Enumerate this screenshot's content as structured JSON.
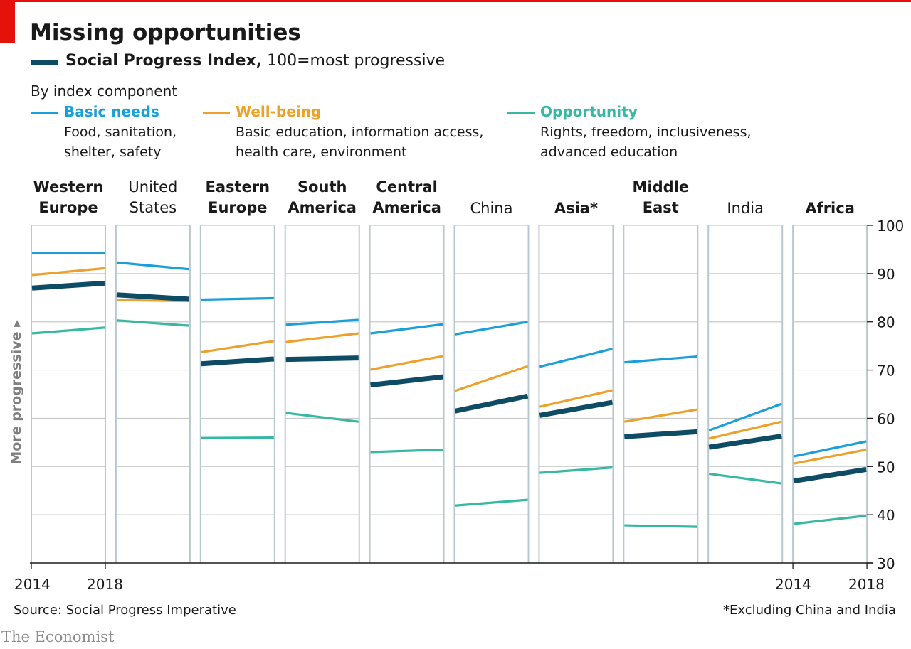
{
  "header": {
    "title": "Missing opportunities",
    "subtitle_bold": "Social Progress Index,",
    "subtitle_rest": " 100=most progressive",
    "components_title": "By index component"
  },
  "legend": [
    {
      "name": "Basic needs",
      "color": "#1a9fd8",
      "desc1": "Food, sanitation,",
      "desc2": "shelter, safety"
    },
    {
      "name": "Well-being",
      "color": "#eea12a",
      "desc1": "Basic education, information access,",
      "desc2": "health care, environment"
    },
    {
      "name": "Opportunity",
      "color": "#36b8a2",
      "desc1": "Rights, freedom, inclusiveness,",
      "desc2": "advanced education"
    }
  ],
  "ylabel": "More progressive ▸",
  "source": "Source:  Social Progress Imperative",
  "footnote": "*Excluding China and India",
  "brand": "The Economist",
  "chart_data": {
    "type": "line",
    "title": "Missing opportunities",
    "x": [
      2014,
      2018
    ],
    "x_tick_labels": [
      "2014",
      "2018"
    ],
    "ylim": [
      30,
      100
    ],
    "y_ticks": [
      30,
      40,
      50,
      60,
      70,
      80,
      90,
      100
    ],
    "y_axis_side": "right",
    "colors": {
      "Social Progress Index": "#0e4c65",
      "Basic needs": "#1a9fd8",
      "Well-being": "#eea12a",
      "Opportunity": "#36b8a2"
    },
    "panels": [
      {
        "label": "Western Europe",
        "bold": true,
        "label_lines": [
          "Western",
          "Europe"
        ],
        "series": {
          "Social Progress Index": [
            87.0,
            88.0
          ],
          "Basic needs": [
            94.2,
            94.3
          ],
          "Well-being": [
            89.7,
            91.1
          ],
          "Opportunity": [
            77.6,
            78.8
          ]
        }
      },
      {
        "label": "United States",
        "bold": false,
        "label_lines": [
          "United",
          "States"
        ],
        "series": {
          "Social Progress Index": [
            85.6,
            84.7
          ],
          "Basic needs": [
            92.3,
            90.9
          ],
          "Well-being": [
            84.5,
            84.3
          ],
          "Opportunity": [
            80.3,
            79.2
          ]
        }
      },
      {
        "label": "Eastern Europe",
        "bold": true,
        "label_lines": [
          "Eastern",
          "Europe"
        ],
        "series": {
          "Social Progress Index": [
            71.3,
            72.3
          ],
          "Basic needs": [
            84.6,
            84.9
          ],
          "Well-being": [
            73.7,
            76.0
          ],
          "Opportunity": [
            55.9,
            56.0
          ]
        }
      },
      {
        "label": "South America",
        "bold": true,
        "label_lines": [
          "South",
          "America"
        ],
        "series": {
          "Social Progress Index": [
            72.2,
            72.5
          ],
          "Basic needs": [
            79.4,
            80.4
          ],
          "Well-being": [
            75.8,
            77.6
          ],
          "Opportunity": [
            61.1,
            59.3
          ]
        }
      },
      {
        "label": "Central America",
        "bold": true,
        "label_lines": [
          "Central",
          "America"
        ],
        "series": {
          "Social Progress Index": [
            66.9,
            68.6
          ],
          "Basic needs": [
            77.6,
            79.5
          ],
          "Well-being": [
            70.1,
            72.9
          ],
          "Opportunity": [
            53.0,
            53.5
          ]
        }
      },
      {
        "label": "China",
        "bold": false,
        "label_lines": [
          "China"
        ],
        "series": {
          "Social Progress Index": [
            61.5,
            64.6
          ],
          "Basic needs": [
            77.4,
            80.0
          ],
          "Well-being": [
            65.7,
            70.8
          ],
          "Opportunity": [
            41.9,
            43.1
          ]
        }
      },
      {
        "label": "Asia*",
        "bold": true,
        "label_lines": [
          "Asia*"
        ],
        "series": {
          "Social Progress Index": [
            60.6,
            63.3
          ],
          "Basic needs": [
            70.7,
            74.4
          ],
          "Well-being": [
            62.4,
            65.8
          ],
          "Opportunity": [
            48.7,
            49.8
          ]
        }
      },
      {
        "label": "Middle East",
        "bold": true,
        "label_lines": [
          "Middle",
          "East"
        ],
        "series": {
          "Social Progress Index": [
            56.2,
            57.2
          ],
          "Basic needs": [
            71.6,
            72.8
          ],
          "Well-being": [
            59.3,
            61.8
          ],
          "Opportunity": [
            37.8,
            37.5
          ]
        }
      },
      {
        "label": "India",
        "bold": false,
        "label_lines": [
          "India"
        ],
        "series": {
          "Social Progress Index": [
            54.0,
            56.3
          ],
          "Basic needs": [
            57.5,
            63.0
          ],
          "Well-being": [
            55.8,
            59.3
          ],
          "Opportunity": [
            48.5,
            46.5
          ]
        }
      },
      {
        "label": "Africa",
        "bold": true,
        "label_lines": [
          "Africa"
        ],
        "series": {
          "Social Progress Index": [
            47.0,
            49.4
          ],
          "Basic needs": [
            52.1,
            55.2
          ],
          "Well-being": [
            50.6,
            53.5
          ],
          "Opportunity": [
            38.1,
            39.8
          ]
        }
      }
    ]
  }
}
